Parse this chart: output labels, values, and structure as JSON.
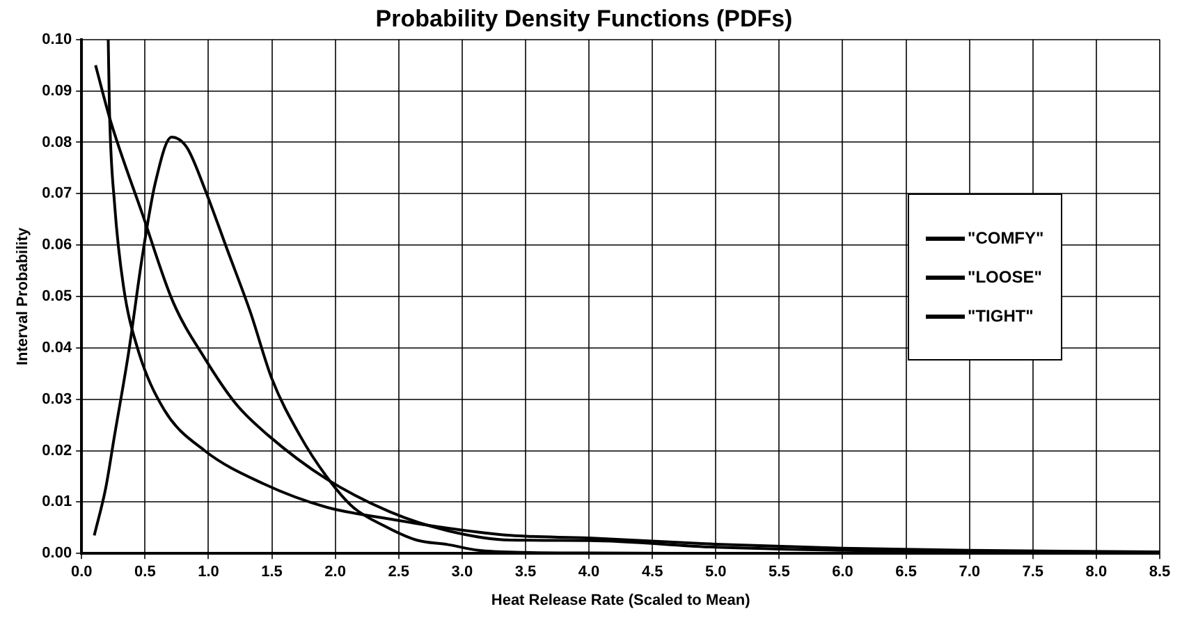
{
  "chart_data": {
    "type": "line",
    "title": "Probability Density Functions (PDFs)",
    "xlabel": "Heat Release Rate (Scaled to Mean)",
    "ylabel": "Interval Probability",
    "xlim": [
      0,
      8.5
    ],
    "xticks": [
      {
        "value": 0,
        "label": "0.0"
      },
      {
        "value": 0.5,
        "label": "0.5"
      },
      {
        "value": 1,
        "label": "1.0"
      },
      {
        "value": 1.5,
        "label": "1.5"
      },
      {
        "value": 2,
        "label": "2.0"
      },
      {
        "value": 2.5,
        "label": "2.5"
      },
      {
        "value": 3,
        "label": "3.0"
      },
      {
        "value": 3.5,
        "label": "3.5"
      },
      {
        "value": 4,
        "label": "4.0"
      },
      {
        "value": 4.5,
        "label": "4.5"
      },
      {
        "value": 5,
        "label": "5.0"
      },
      {
        "value": 5.5,
        "label": "5.5"
      },
      {
        "value": 6,
        "label": "6.0"
      },
      {
        "value": 6.5,
        "label": "6.5"
      },
      {
        "value": 7,
        "label": "7.0"
      },
      {
        "value": 7.5,
        "label": "7.5"
      },
      {
        "value": 8,
        "label": "8.0"
      },
      {
        "value": 8.5,
        "label": "8.5"
      }
    ],
    "ylim": [
      0,
      0.1
    ],
    "yticks": [
      {
        "value": 0,
        "label": "0.00"
      },
      {
        "value": 0.01,
        "label": "0.01"
      },
      {
        "value": 0.02,
        "label": "0.02"
      },
      {
        "value": 0.03,
        "label": "0.03"
      },
      {
        "value": 0.04,
        "label": "0.04"
      },
      {
        "value": 0.05,
        "label": "0.05"
      },
      {
        "value": 0.06,
        "label": "0.06"
      },
      {
        "value": 0.07,
        "label": "0.07"
      },
      {
        "value": 0.08,
        "label": "0.08"
      },
      {
        "value": 0.09,
        "label": "0.09"
      },
      {
        "value": 0.1,
        "label": "0.10"
      }
    ],
    "grid": true,
    "legend": "right",
    "marker": "none",
    "line_style": "solid",
    "series": [
      {
        "name": "\"COMFY\"",
        "color": "#000000",
        "x": [
          0.1,
          0.19,
          0.26,
          0.37,
          0.48,
          0.58,
          0.71,
          0.83,
          0.97,
          1.15,
          1.33,
          1.5,
          1.72,
          1.93,
          2.14,
          2.39,
          2.64,
          2.89,
          3.13,
          3.49,
          4.0,
          5.0,
          6.0,
          7.0,
          8.5
        ],
        "values": [
          0.0035,
          0.0127,
          0.023,
          0.039,
          0.058,
          0.072,
          0.081,
          0.079,
          0.071,
          0.059,
          0.047,
          0.034,
          0.023,
          0.015,
          0.009,
          0.0053,
          0.0026,
          0.0017,
          0.0006,
          0.0002,
          0.0001,
          0,
          0,
          0,
          0
        ]
      },
      {
        "name": "\"LOOSE\"",
        "color": "#000000",
        "x": [
          0.11,
          0.23,
          0.48,
          0.72,
          0.97,
          1.22,
          1.47,
          1.93,
          2.43,
          2.89,
          3.38,
          4.0,
          5.0,
          6.0,
          7.0,
          8.5
        ],
        "values": [
          0.095,
          0.084,
          0.066,
          0.049,
          0.038,
          0.029,
          0.023,
          0.0145,
          0.0081,
          0.0044,
          0.0026,
          0.0025,
          0.0012,
          0.0006,
          0.0003,
          0.0001
        ]
      },
      {
        "name": "\"TIGHT\"",
        "color": "#000000",
        "x": [
          0.21,
          0.22,
          0.26,
          0.33,
          0.44,
          0.65,
          0.97,
          1.43,
          1.93,
          2.43,
          2.89,
          3.38,
          4.0,
          5.0,
          6.0,
          7.0,
          8.5
        ],
        "values": [
          0.1,
          0.086,
          0.068,
          0.052,
          0.04,
          0.028,
          0.02,
          0.0136,
          0.009,
          0.0067,
          0.0049,
          0.0035,
          0.003,
          0.0018,
          0.001,
          0.0006,
          0.0003
        ]
      }
    ]
  }
}
